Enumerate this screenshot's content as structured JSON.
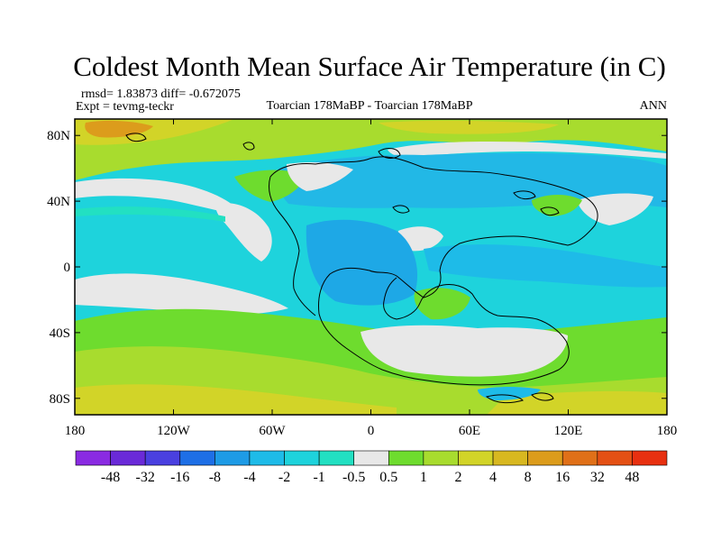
{
  "figure": {
    "title": "Coldest Month Mean Surface Air Temperature (in C)",
    "stats": "rmsd= 1.83873 diff= -0.672075",
    "expt": "Expt = tevmg-teckr",
    "center": "Toarcian 178MaBP - Toarcian 178MaBP",
    "right": "ANN"
  },
  "map": {
    "projection": "cylindrical-equidistant",
    "lon_range": [
      -180,
      180
    ],
    "lat_range": [
      -90,
      90
    ],
    "lon_ticks": [
      "180",
      "120W",
      "60W",
      "0",
      "60E",
      "120E",
      "180"
    ],
    "lat_ticks": [
      "80N",
      "40N",
      "0",
      "40S",
      "80S"
    ],
    "field": "difference in coldest month mean surface air temperature",
    "regions": [
      {
        "area": "tropical and mid-latitude oceans",
        "category": "-2 to -1"
      },
      {
        "area": "subtropical central Pacific",
        "category": "-0.5 to 0.5"
      },
      {
        "area": "North Atlantic / Arctic band",
        "category": "-4 to -2"
      },
      {
        "area": "high northern latitudes",
        "category": "1 to 4"
      },
      {
        "area": "southern ocean",
        "category": "1 to 4"
      },
      {
        "area": "Gondwana interior",
        "category": "-0.5 to 0.5"
      }
    ]
  },
  "colorbar": {
    "labels": [
      "-48",
      "-32",
      "-16",
      "-8",
      "-4",
      "-2",
      "-1",
      "-0.5",
      "0.5",
      "1",
      "2",
      "4",
      "8",
      "16",
      "32",
      "48"
    ],
    "colors": [
      "#8a2be2",
      "#6a2ad8",
      "#4a40e0",
      "#1e6fe6",
      "#1e9be6",
      "#1ebbe8",
      "#1ed3dc",
      "#22e0c2",
      "#e8e8e8",
      "#6edc2e",
      "#a8dc2e",
      "#d2d428",
      "#d8b820",
      "#dc9c1c",
      "#e07018",
      "#e45014",
      "#e83010"
    ]
  }
}
